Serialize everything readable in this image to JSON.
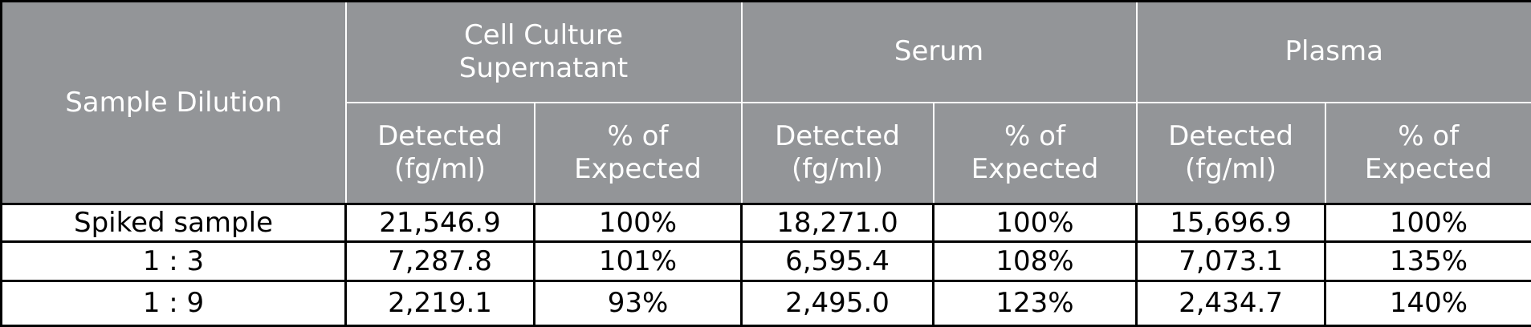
{
  "table": {
    "row_header": "Sample Dilution",
    "groups": [
      "Cell Culture Supernatant",
      "Serum",
      "Plasma"
    ],
    "subheaders": [
      "Detected (fg/ml)",
      "% of Expected",
      "Detected (fg/ml)",
      "% of Expected",
      "Detected (fg/ml)",
      "% of Expected"
    ],
    "rows": [
      [
        "Spiked sample",
        "21,546.9",
        "100%",
        "18,271.0",
        "100%",
        "15,696.9",
        "100%"
      ],
      [
        "1 : 3",
        "7,287.8",
        "101%",
        "6,595.4",
        "108%",
        "7,073.1",
        "135%"
      ],
      [
        "1 : 9",
        "2,219.1",
        "93%",
        "2,495.0",
        "123%",
        "2,434.7",
        "140%"
      ]
    ]
  }
}
